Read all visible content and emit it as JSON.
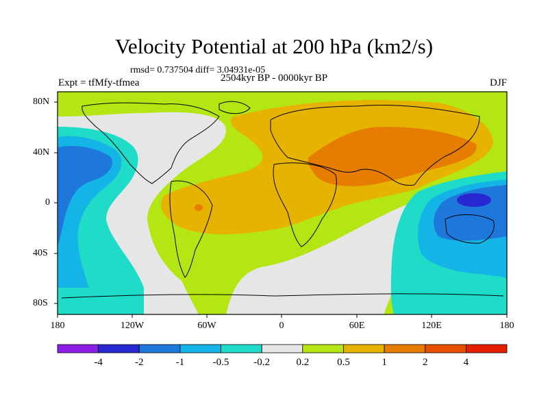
{
  "title": "Velocity Potential at 200 hPa (km2/s)",
  "stats": "rmsd= 0.737504 diff= 3.04931e-05",
  "experiment": "Expt = tfMfy-tfmea",
  "period": "2504kyr BP - 0000kyr BP",
  "season": "DJF",
  "lat_labels": [
    "80N",
    "40N",
    "0",
    "40S",
    "80S"
  ],
  "lon_labels": [
    "180",
    "120W",
    "60W",
    "0",
    "60E",
    "120E",
    "180"
  ],
  "colorbar": {
    "colors": [
      "#8c1ee6",
      "#2828d2",
      "#1e78dc",
      "#14b4e6",
      "#1edcc8",
      "#e6e6e6",
      "#b4e614",
      "#e6b400",
      "#e67d00",
      "#e65000",
      "#e61e00"
    ],
    "labels": [
      "-4",
      "-2",
      "-1",
      "-0.5",
      "-0.2",
      "0.2",
      "0.5",
      "1",
      "2",
      "4"
    ]
  },
  "legend_meaning": {
    "neutral": "#e6e6e6"
  }
}
